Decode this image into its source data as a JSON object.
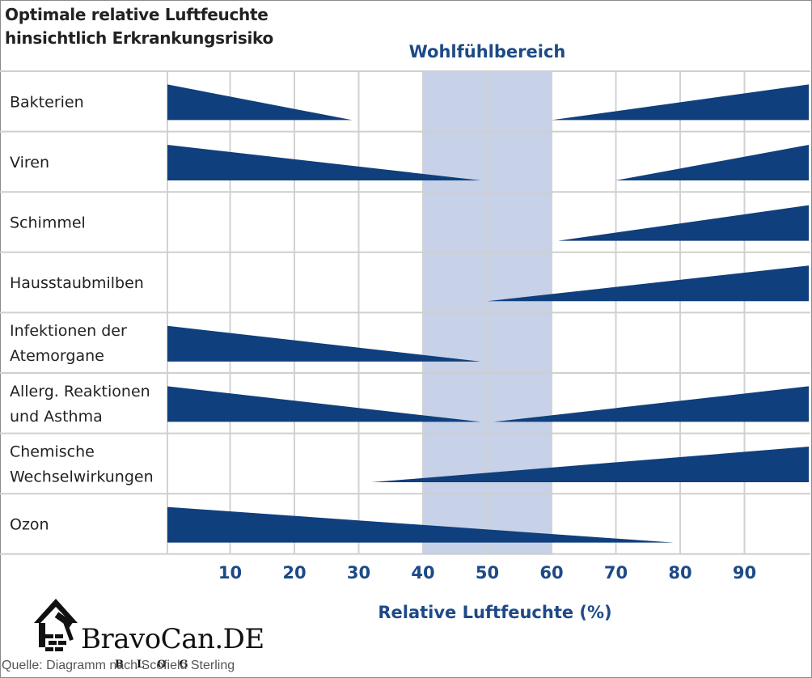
{
  "title_line1": "Optimale relative Luftfeuchte",
  "title_line2": "hinsichtlich Erkrankungsrisiko",
  "chart_data": {
    "type": "bar",
    "title": "Optimale relative Luftfeuchte hinsichtlich Erkrankungsrisiko",
    "xlabel": "Relative Luftfeuchte (%)",
    "xlim": [
      0,
      100
    ],
    "xticks": [
      10,
      20,
      30,
      40,
      50,
      60,
      70,
      80,
      90
    ],
    "grid": true,
    "comfort_zone": {
      "label": "Wohlfühlbereich",
      "from": 40,
      "to": 60
    },
    "rows": [
      {
        "label": [
          "Bakterien"
        ],
        "wedges": [
          {
            "from": 0,
            "to": 29,
            "direction": "decreasing"
          },
          {
            "from": 60,
            "to": 100,
            "direction": "increasing"
          }
        ]
      },
      {
        "label": [
          "Viren"
        ],
        "wedges": [
          {
            "from": 0,
            "to": 49,
            "direction": "decreasing"
          },
          {
            "from": 70,
            "to": 100,
            "direction": "increasing"
          }
        ]
      },
      {
        "label": [
          "Schimmel"
        ],
        "wedges": [
          {
            "from": 61,
            "to": 100,
            "direction": "increasing"
          }
        ]
      },
      {
        "label": [
          "Hausstaubmilben"
        ],
        "wedges": [
          {
            "from": 50,
            "to": 100,
            "direction": "increasing"
          }
        ]
      },
      {
        "label": [
          "Infektionen der",
          "Atemorgane"
        ],
        "wedges": [
          {
            "from": 0,
            "to": 49,
            "direction": "decreasing"
          }
        ]
      },
      {
        "label": [
          "Allerg. Reaktionen",
          "und Asthma"
        ],
        "wedges": [
          {
            "from": 0,
            "to": 49,
            "direction": "decreasing"
          },
          {
            "from": 51,
            "to": 100,
            "direction": "increasing"
          }
        ]
      },
      {
        "label": [
          "Chemische",
          "Wechselwirkungen"
        ],
        "wedges": [
          {
            "from": 32,
            "to": 100,
            "direction": "increasing"
          }
        ]
      },
      {
        "label": [
          "Ozon"
        ],
        "wedges": [
          {
            "from": 0,
            "to": 79,
            "direction": "decreasing"
          }
        ]
      }
    ]
  },
  "colors": {
    "wedge": "#0f3f7d",
    "band": "#c7d1e7",
    "grid": "#d2d2d2",
    "accent": "#1d4a87"
  },
  "logo": {
    "text": "BravoCan.DE",
    "subtext": "BLOG",
    "icon": "house-with-hammer-icon"
  },
  "source": "Quelle: Diagramm nach Scofield Sterling"
}
